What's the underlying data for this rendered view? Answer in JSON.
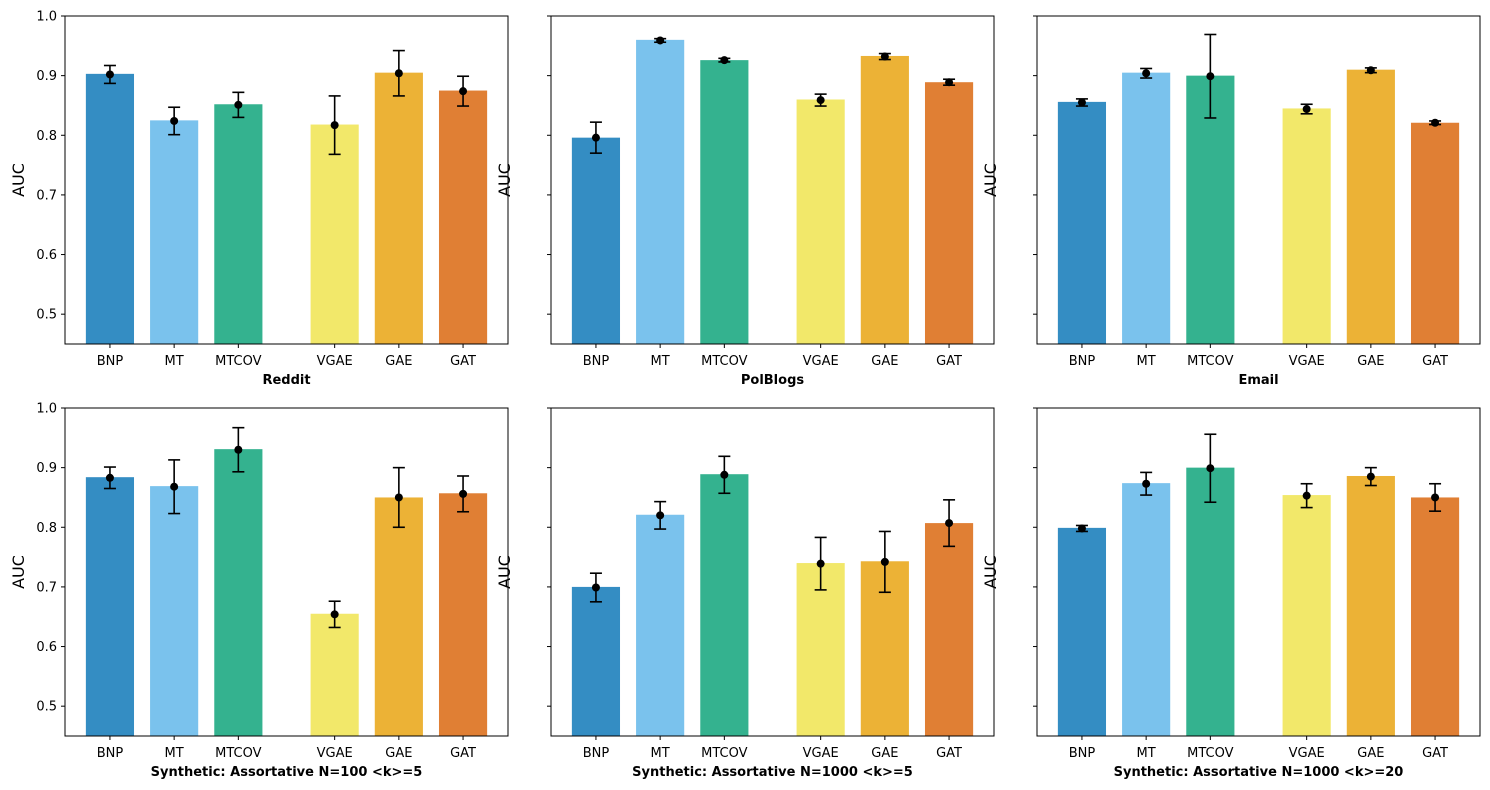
{
  "colors": {
    "BNP": "#348dc3",
    "MT": "#7ac2ed",
    "MTCOV": "#34b28f",
    "VGAE": "#f2e86a",
    "GAE": "#ecb236",
    "GAT": "#e07f34",
    "errorbar": "#000000"
  },
  "chart_data": [
    {
      "type": "bar",
      "title": "Reddit",
      "xlabel": "Reddit",
      "ylabel": "AUC",
      "ylim": [
        0.45,
        1.0
      ],
      "yticks": [
        "0.5",
        "0.6",
        "0.7",
        "0.8",
        "0.9",
        "1.0"
      ],
      "categories": [
        "BNP",
        "MT",
        "MTCOV",
        "VGAE",
        "GAE",
        "GAT"
      ],
      "values": [
        0.903,
        0.825,
        0.852,
        0.818,
        0.905,
        0.875
      ],
      "means": [
        0.902,
        0.824,
        0.851,
        0.817,
        0.904,
        0.874
      ],
      "errors": [
        0.015,
        0.023,
        0.021,
        0.049,
        0.038,
        0.025
      ]
    },
    {
      "type": "bar",
      "title": "PolBlogs",
      "xlabel": "PolBlogs",
      "ylabel": "AUC",
      "ylim": [
        0.45,
        1.0
      ],
      "yticks": [
        "0.5",
        "0.6",
        "0.7",
        "0.8",
        "0.9",
        "1.0"
      ],
      "categories": [
        "BNP",
        "MT",
        "MTCOV",
        "VGAE",
        "GAE",
        "GAT"
      ],
      "values": [
        0.796,
        0.96,
        0.926,
        0.86,
        0.933,
        0.889
      ],
      "means": [
        0.796,
        0.959,
        0.926,
        0.859,
        0.932,
        0.889
      ],
      "errors": [
        0.026,
        0.003,
        0.003,
        0.01,
        0.005,
        0.005
      ]
    },
    {
      "type": "bar",
      "title": "Email",
      "xlabel": "Email",
      "ylabel": "AUC",
      "ylim": [
        0.45,
        1.0
      ],
      "yticks": [
        "0.5",
        "0.6",
        "0.7",
        "0.8",
        "0.9",
        "1.0"
      ],
      "categories": [
        "BNP",
        "MT",
        "MTCOV",
        "VGAE",
        "GAE",
        "GAT"
      ],
      "values": [
        0.856,
        0.905,
        0.9,
        0.845,
        0.91,
        0.821
      ],
      "means": [
        0.855,
        0.904,
        0.899,
        0.844,
        0.909,
        0.821
      ],
      "errors": [
        0.006,
        0.008,
        0.07,
        0.008,
        0.004,
        0.003
      ]
    },
    {
      "type": "bar",
      "title": "Synthetic: Assortative N=100 <k>=5",
      "xlabel": "Synthetic: Assortative N=100 <k>=5",
      "ylabel": "AUC",
      "ylim": [
        0.45,
        1.0
      ],
      "yticks": [
        "0.5",
        "0.6",
        "0.7",
        "0.8",
        "0.9",
        "1.0"
      ],
      "categories": [
        "BNP",
        "MT",
        "MTCOV",
        "VGAE",
        "GAE",
        "GAT"
      ],
      "values": [
        0.884,
        0.869,
        0.931,
        0.655,
        0.85,
        0.857
      ],
      "means": [
        0.883,
        0.868,
        0.93,
        0.654,
        0.85,
        0.856
      ],
      "errors": [
        0.018,
        0.045,
        0.037,
        0.022,
        0.05,
        0.03
      ]
    },
    {
      "type": "bar",
      "title": "Synthetic: Assortative N=1000 <k>=5",
      "xlabel": "Synthetic: Assortative N=1000 <k>=5",
      "ylabel": "AUC",
      "ylim": [
        0.45,
        1.0
      ],
      "yticks": [
        "0.5",
        "0.6",
        "0.7",
        "0.8",
        "0.9",
        "1.0"
      ],
      "categories": [
        "BNP",
        "MT",
        "MTCOV",
        "VGAE",
        "GAE",
        "GAT"
      ],
      "values": [
        0.7,
        0.821,
        0.889,
        0.74,
        0.743,
        0.807
      ],
      "means": [
        0.699,
        0.82,
        0.888,
        0.739,
        0.742,
        0.807
      ],
      "errors": [
        0.024,
        0.023,
        0.031,
        0.044,
        0.051,
        0.039
      ]
    },
    {
      "type": "bar",
      "title": "Synthetic: Assortative N=1000 <k>=20",
      "xlabel": "Synthetic: Assortative N=1000 <k>=20",
      "ylabel": "AUC",
      "ylim": [
        0.45,
        1.0
      ],
      "yticks": [
        "0.5",
        "0.6",
        "0.7",
        "0.8",
        "0.9",
        "1.0"
      ],
      "categories": [
        "BNP",
        "MT",
        "MTCOV",
        "VGAE",
        "GAE",
        "GAT"
      ],
      "values": [
        0.799,
        0.874,
        0.9,
        0.854,
        0.886,
        0.85
      ],
      "means": [
        0.798,
        0.873,
        0.899,
        0.853,
        0.885,
        0.85
      ],
      "errors": [
        0.005,
        0.019,
        0.057,
        0.02,
        0.015,
        0.023
      ]
    }
  ]
}
